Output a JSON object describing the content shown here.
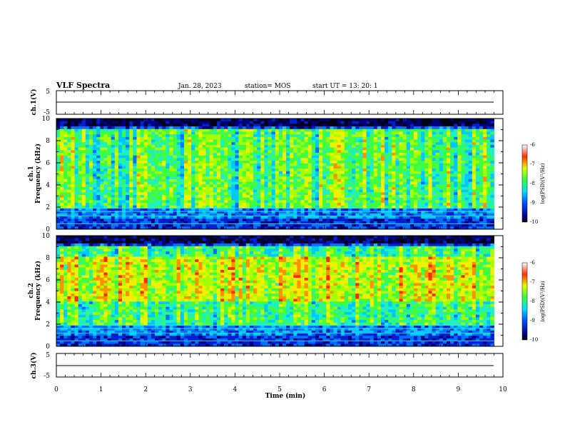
{
  "header": {
    "title": "VLF Spectra",
    "date": "Jan. 28, 2023",
    "station": "station= MOS",
    "start": "start  UT =   13: 20: 1"
  },
  "chart_data": {
    "type": "heatmap",
    "x": {
      "label": "Time (min)",
      "range": [
        0,
        10
      ],
      "ticks": [
        "0",
        "1",
        "2",
        "3",
        "4",
        "5",
        "6",
        "7",
        "8",
        "9",
        "10"
      ]
    },
    "panels": [
      {
        "id": "ch1_wave",
        "type": "line",
        "ylabel": "ch.1(V)",
        "ylim": [
          -5,
          5
        ],
        "yticks": [
          "5",
          "-5"
        ],
        "baseline": 0
      },
      {
        "id": "ch1_spec",
        "type": "heatmap",
        "ylabel": "ch.1",
        "ylabel2": "Frequency (kHz)",
        "ylim": [
          0,
          10
        ],
        "yticks": [
          "0",
          "2",
          "4",
          "6",
          "8",
          "10"
        ],
        "data_time_end": 9.8,
        "dominant_band_khz": [
          2,
          9
        ],
        "colorbar": {
          "label": "log(PSD)(V²/Hz)",
          "range": [
            -10,
            -6
          ],
          "ticks": [
            "-6",
            "-7",
            "-8",
            "-9",
            "-10"
          ]
        }
      },
      {
        "id": "ch2_spec",
        "type": "heatmap",
        "ylabel": "ch.2",
        "ylabel2": "Frequency (kHz)",
        "ylim": [
          0,
          10
        ],
        "yticks": [
          "0",
          "2",
          "4",
          "6",
          "8",
          "10"
        ],
        "data_time_end": 9.8,
        "dominant_band_khz": [
          4,
          9
        ],
        "colorbar": {
          "label": "log(PSD)(V²/Hz)",
          "range": [
            -10,
            -6
          ],
          "ticks": [
            "-6",
            "-7",
            "-8",
            "-9",
            "-10"
          ]
        }
      },
      {
        "id": "ch3_wave",
        "type": "line",
        "ylabel": "ch.3(V)",
        "ylim": [
          -5,
          5
        ],
        "yticks": [
          "5",
          "-5"
        ],
        "baseline": 0
      }
    ]
  }
}
